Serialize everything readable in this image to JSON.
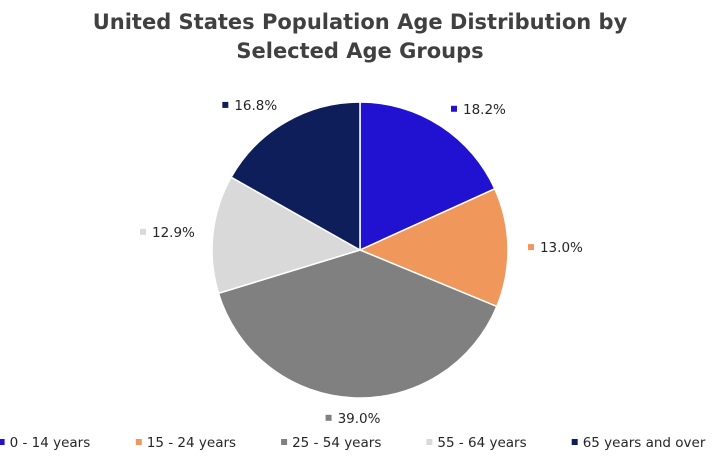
{
  "chart_data": {
    "type": "pie",
    "title_lines": [
      "United States Population Age Distribution by",
      "Selected Age Groups"
    ],
    "slices": [
      {
        "label": "0 - 14 years",
        "value": 18.2,
        "display": "18.2%",
        "color": "#2112d2"
      },
      {
        "label": "15 - 24 years",
        "value": 13.0,
        "display": "13.0%",
        "color": "#f0985b"
      },
      {
        "label": "25 - 54 years",
        "value": 39.0,
        "display": "39.0%",
        "color": "#808080"
      },
      {
        "label": "55 - 64 years",
        "value": 12.9,
        "display": "12.9%",
        "color": "#d9d9d9"
      },
      {
        "label": "65 years and over",
        "value": 16.8,
        "display": "16.8%",
        "color": "#0e1e5b"
      }
    ],
    "start_angle": "12 o'clock",
    "direction": "clockwise",
    "legend_position": "bottom"
  }
}
